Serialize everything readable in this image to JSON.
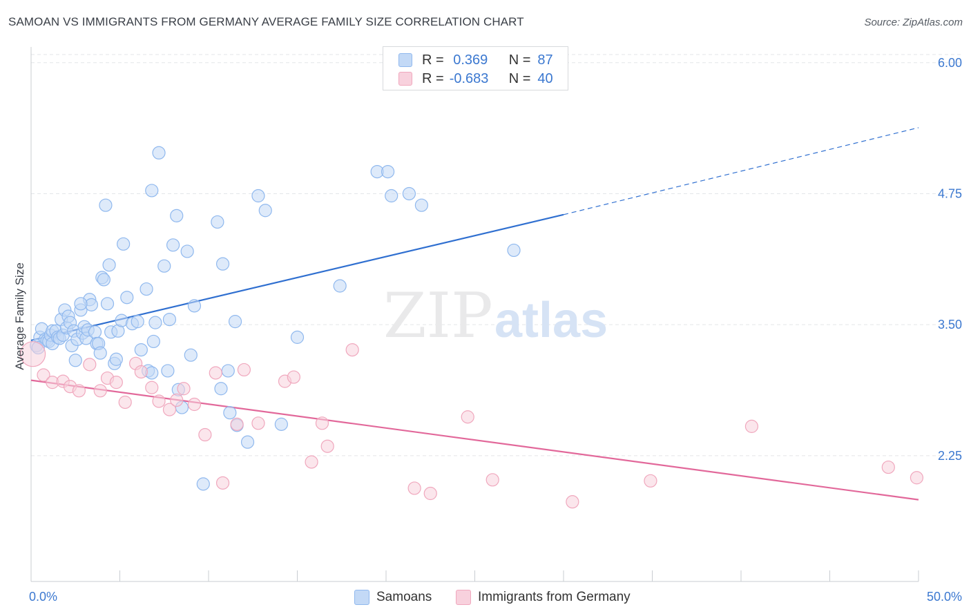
{
  "title": "SAMOAN VS IMMIGRANTS FROM GERMANY AVERAGE FAMILY SIZE CORRELATION CHART",
  "source": "Source: ZipAtlas.com",
  "watermark": {
    "zip": "ZIP",
    "atlas": "atlas"
  },
  "legend": {
    "rows": [
      {
        "r_label": "R =",
        "r_value": " 0.369",
        "n_label": "N =",
        "n_value": "87",
        "color": "#8fb8ee",
        "fill": "#c3d9f6"
      },
      {
        "r_label": "R =",
        "r_value": "-0.683",
        "n_label": "N =",
        "n_value": "40",
        "color": "#f0a7bd",
        "fill": "#f8d1dd"
      }
    ]
  },
  "bottom_legend": [
    {
      "label": "Samoans",
      "color": "#8fb8ee",
      "fill": "#c3d9f6"
    },
    {
      "label": "Immigrants from Germany",
      "color": "#f0a7bd",
      "fill": "#f8d1dd"
    }
  ],
  "chart_data": {
    "type": "scatter",
    "title": "SAMOAN VS IMMIGRANTS FROM GERMANY AVERAGE FAMILY SIZE CORRELATION CHART",
    "xlabel": "",
    "ylabel": "Average Family Size",
    "xlim": [
      0,
      50
    ],
    "ylim": [
      1.05,
      6.15
    ],
    "x_tick_labels": [
      "0.0%",
      "50.0%"
    ],
    "y_ticks": [
      2.25,
      3.5,
      4.75,
      6.0
    ],
    "y_tick_labels": [
      "2.25",
      "3.50",
      "4.75",
      "6.00"
    ],
    "grid": "horizontal dashed",
    "series": [
      {
        "name": "Samoans",
        "color": "#8fb8ee",
        "fill": "#c3d9f6",
        "line_color": "#2f6fd0",
        "trend": {
          "x0": 0,
          "y0": 3.35,
          "x1": 30,
          "y1": 4.55,
          "dashed_to_x": 50,
          "dashed_to_y": 5.38
        },
        "points": [
          [
            0.3,
            3.3
          ],
          [
            0.5,
            3.38
          ],
          [
            0.6,
            3.46
          ],
          [
            0.8,
            3.36
          ],
          [
            0.9,
            3.35
          ],
          [
            1.0,
            3.34
          ],
          [
            1.1,
            3.4
          ],
          [
            1.2,
            3.44
          ],
          [
            1.2,
            3.32
          ],
          [
            1.4,
            3.44
          ],
          [
            1.5,
            3.38
          ],
          [
            1.6,
            3.37
          ],
          [
            1.7,
            3.55
          ],
          [
            1.8,
            3.4
          ],
          [
            1.9,
            3.64
          ],
          [
            2.0,
            3.47
          ],
          [
            2.1,
            3.58
          ],
          [
            2.2,
            3.52
          ],
          [
            2.3,
            3.3
          ],
          [
            2.4,
            3.44
          ],
          [
            2.5,
            3.16
          ],
          [
            2.6,
            3.36
          ],
          [
            2.8,
            3.64
          ],
          [
            2.9,
            3.42
          ],
          [
            3.0,
            3.48
          ],
          [
            3.1,
            3.37
          ],
          [
            3.2,
            3.45
          ],
          [
            3.3,
            3.74
          ],
          [
            3.4,
            3.69
          ],
          [
            3.6,
            3.43
          ],
          [
            3.7,
            3.32
          ],
          [
            3.8,
            3.32
          ],
          [
            3.9,
            3.23
          ],
          [
            4.0,
            3.95
          ],
          [
            4.1,
            3.93
          ],
          [
            4.2,
            4.64
          ],
          [
            4.3,
            3.7
          ],
          [
            4.4,
            4.07
          ],
          [
            4.5,
            3.43
          ],
          [
            4.7,
            3.13
          ],
          [
            4.8,
            3.17
          ],
          [
            4.9,
            3.44
          ],
          [
            5.1,
            3.54
          ],
          [
            5.2,
            4.27
          ],
          [
            5.4,
            3.76
          ],
          [
            5.7,
            3.51
          ],
          [
            6.0,
            3.53
          ],
          [
            6.2,
            3.26
          ],
          [
            6.5,
            3.84
          ],
          [
            6.6,
            3.06
          ],
          [
            6.8,
            4.78
          ],
          [
            6.9,
            3.34
          ],
          [
            7.0,
            3.52
          ],
          [
            7.2,
            5.14
          ],
          [
            7.5,
            4.06
          ],
          [
            7.7,
            3.06
          ],
          [
            7.8,
            3.55
          ],
          [
            8.0,
            4.26
          ],
          [
            8.2,
            4.54
          ],
          [
            8.3,
            2.88
          ],
          [
            8.5,
            2.71
          ],
          [
            8.8,
            4.2
          ],
          [
            9.0,
            3.21
          ],
          [
            9.2,
            3.68
          ],
          [
            9.7,
            1.98
          ],
          [
            10.5,
            4.48
          ],
          [
            10.7,
            2.89
          ],
          [
            10.8,
            4.08
          ],
          [
            11.1,
            3.06
          ],
          [
            11.2,
            2.66
          ],
          [
            11.5,
            3.53
          ],
          [
            11.6,
            2.54
          ],
          [
            12.2,
            2.38
          ],
          [
            12.8,
            4.73
          ],
          [
            13.2,
            4.59
          ],
          [
            14.1,
            2.55
          ],
          [
            15.0,
            3.38
          ],
          [
            17.4,
            3.87
          ],
          [
            19.5,
            4.96
          ],
          [
            20.1,
            4.96
          ],
          [
            20.3,
            4.73
          ],
          [
            21.3,
            4.75
          ],
          [
            22.0,
            4.64
          ],
          [
            27.2,
            4.21
          ],
          [
            6.8,
            3.04
          ],
          [
            2.8,
            3.7
          ],
          [
            0.4,
            3.28
          ]
        ]
      },
      {
        "name": "Immigrants from Germany",
        "color": "#f0a7bd",
        "fill": "#f8d1dd",
        "line_color": "#e2689a",
        "trend": {
          "x0": 0,
          "y0": 2.97,
          "x1": 50,
          "y1": 1.83
        },
        "points": [
          [
            0.1,
            3.22
          ],
          [
            0.7,
            3.02
          ],
          [
            1.2,
            2.95
          ],
          [
            1.8,
            2.96
          ],
          [
            2.2,
            2.91
          ],
          [
            2.7,
            2.87
          ],
          [
            3.3,
            3.12
          ],
          [
            3.9,
            2.87
          ],
          [
            4.3,
            2.99
          ],
          [
            4.8,
            2.95
          ],
          [
            5.3,
            2.76
          ],
          [
            5.9,
            3.13
          ],
          [
            6.2,
            3.05
          ],
          [
            6.8,
            2.9
          ],
          [
            7.2,
            2.77
          ],
          [
            7.8,
            2.69
          ],
          [
            8.2,
            2.78
          ],
          [
            8.6,
            2.89
          ],
          [
            9.2,
            2.74
          ],
          [
            9.8,
            2.45
          ],
          [
            10.4,
            3.04
          ],
          [
            10.8,
            1.99
          ],
          [
            11.6,
            2.55
          ],
          [
            12.0,
            3.07
          ],
          [
            12.8,
            2.56
          ],
          [
            14.3,
            2.96
          ],
          [
            14.8,
            3.0
          ],
          [
            15.8,
            2.19
          ],
          [
            16.4,
            2.56
          ],
          [
            16.7,
            2.34
          ],
          [
            18.1,
            3.26
          ],
          [
            21.6,
            1.94
          ],
          [
            22.5,
            1.89
          ],
          [
            24.6,
            2.62
          ],
          [
            26.0,
            2.02
          ],
          [
            30.5,
            1.81
          ],
          [
            34.9,
            2.01
          ],
          [
            40.6,
            2.53
          ],
          [
            48.3,
            2.14
          ],
          [
            49.9,
            2.04
          ]
        ]
      }
    ]
  }
}
